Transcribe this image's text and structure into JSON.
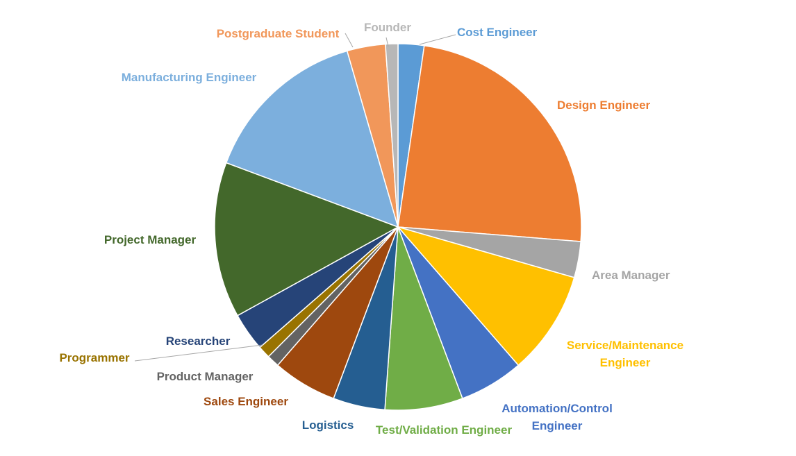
{
  "chart_data": {
    "type": "pie",
    "title": "",
    "legend": "none",
    "slices": [
      {
        "label": "Cost Engineer",
        "value": 2.3,
        "color": "#5b9bd5"
      },
      {
        "label": "Design Engineer",
        "value": 24.1,
        "color": "#ed7d31"
      },
      {
        "label": "Area Manager",
        "value": 3.2,
        "color": "#a5a5a5"
      },
      {
        "label": "Service/Maintenance Engineer",
        "value": 9.2,
        "color": "#ffc000"
      },
      {
        "label": "Automation/Control Engineer",
        "value": 5.7,
        "color": "#4472c4"
      },
      {
        "label": "Test/Validation Engineer",
        "value": 6.9,
        "color": "#70ad47"
      },
      {
        "label": "Logistics",
        "value": 4.6,
        "color": "#255e91"
      },
      {
        "label": "Sales Engineer",
        "value": 5.7,
        "color": "#9e480e"
      },
      {
        "label": "Product Manager",
        "value": 1.1,
        "color": "#636363"
      },
      {
        "label": "Programmer",
        "value": 1.1,
        "color": "#997300"
      },
      {
        "label": "Researcher",
        "value": 3.4,
        "color": "#264478"
      },
      {
        "label": "Project Manager",
        "value": 13.8,
        "color": "#43682b"
      },
      {
        "label": "Manufacturing Engineer",
        "value": 14.9,
        "color": "#7cafdd"
      },
      {
        "label": "Postgraduate Student",
        "value": 3.4,
        "color": "#f1975a"
      },
      {
        "label": "Founder",
        "value": 1.1,
        "color": "#b7b7b7"
      }
    ]
  }
}
